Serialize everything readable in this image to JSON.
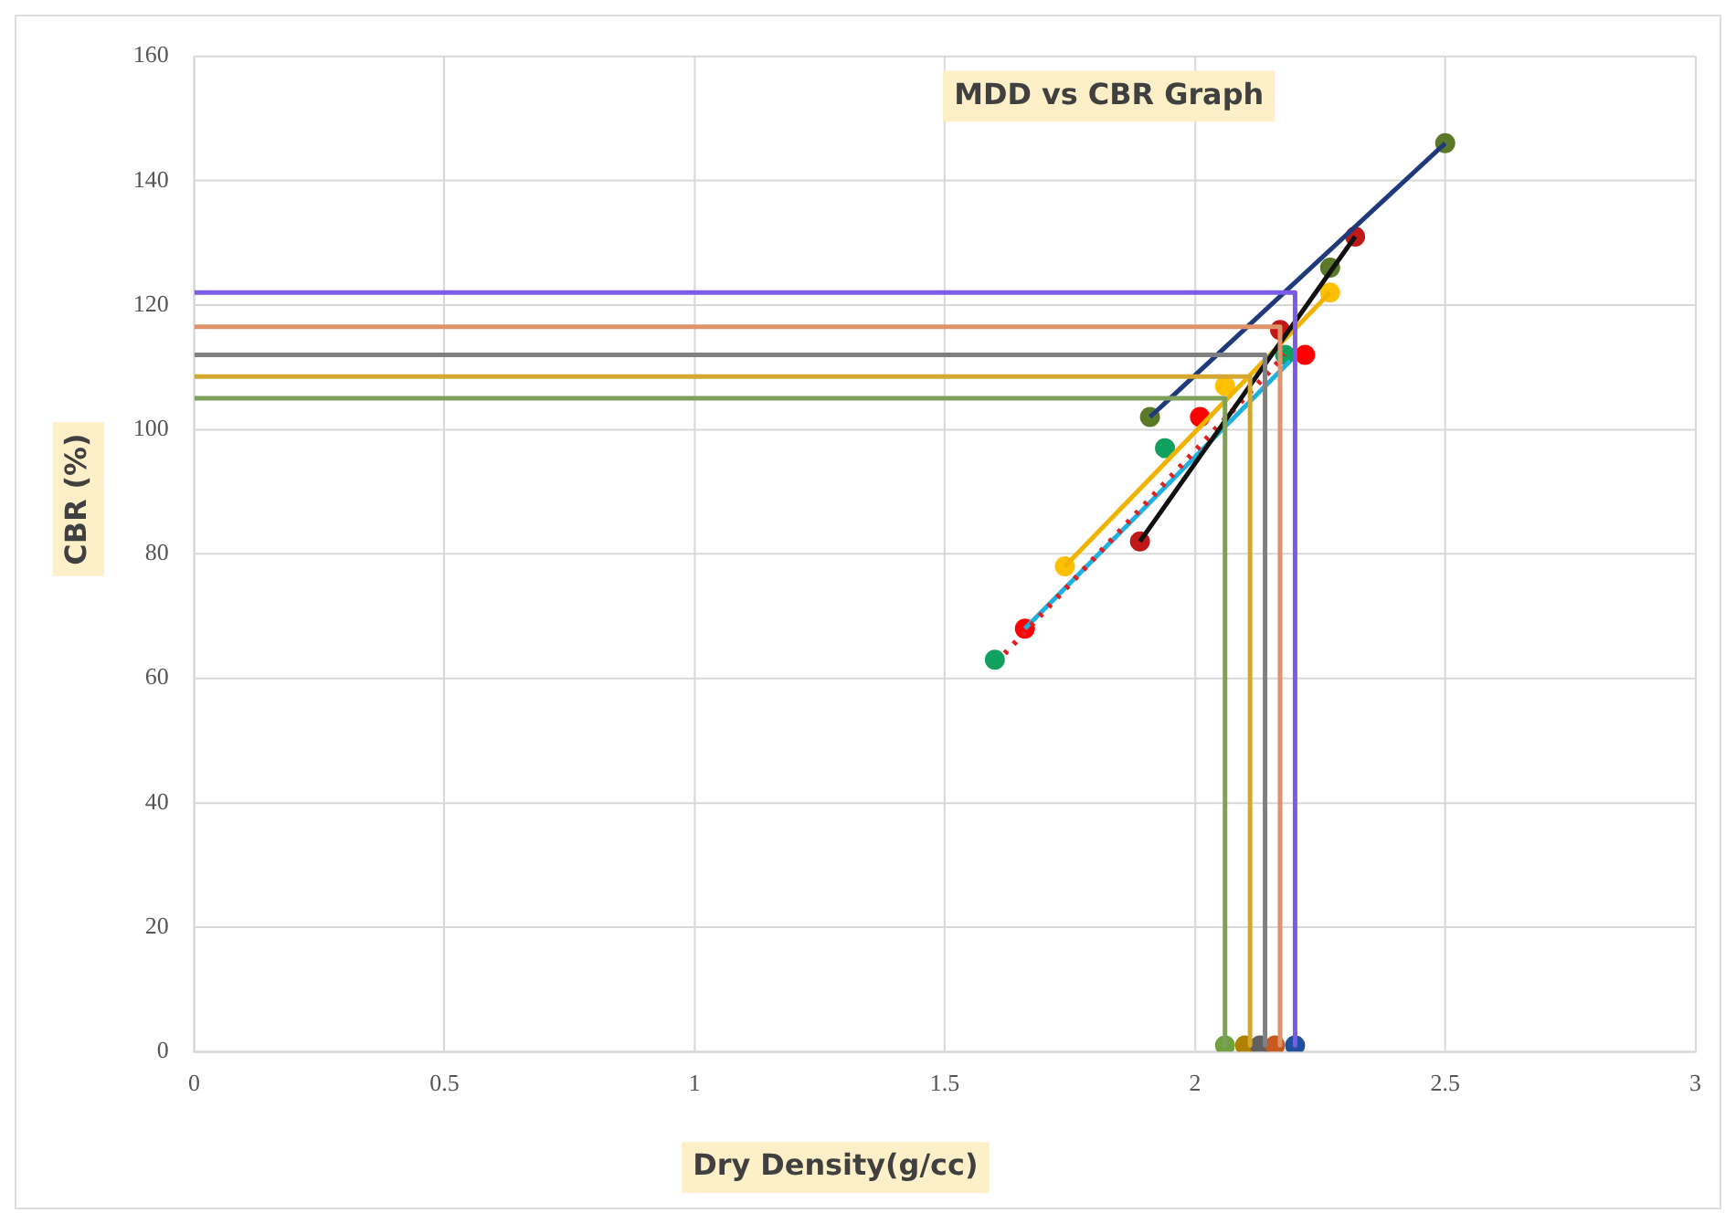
{
  "chart_data": {
    "type": "scatter",
    "title": "MDD vs CBR Graph",
    "xlabel": "Dry Density(g/cc)",
    "ylabel": "CBR (%)",
    "xlim": [
      0,
      3
    ],
    "ylim": [
      0,
      160
    ],
    "xticks": [
      0,
      0.5,
      1,
      1.5,
      2,
      2.5,
      3
    ],
    "yticks": [
      0,
      20,
      40,
      60,
      80,
      100,
      120,
      140,
      160
    ],
    "grid": true,
    "legend": false,
    "marker": "circle",
    "series": [
      {
        "type": "line",
        "color": "#7b5ce6",
        "x": [
          0,
          2.2,
          2.2
        ],
        "values": [
          122,
          122,
          1
        ],
        "marker": "none"
      },
      {
        "type": "line",
        "color": "#e0926a",
        "x": [
          0,
          2.17,
          2.17
        ],
        "values": [
          116.5,
          116.5,
          1
        ],
        "marker": "none"
      },
      {
        "type": "line",
        "color": "#808080",
        "x": [
          0,
          2.14,
          2.14
        ],
        "values": [
          112,
          112,
          1
        ],
        "marker": "none"
      },
      {
        "type": "line",
        "color": "#d4a830",
        "x": [
          0,
          2.11,
          2.11
        ],
        "values": [
          108.5,
          108.5,
          1
        ],
        "marker": "none"
      },
      {
        "type": "line",
        "color": "#7fa05a",
        "x": [
          0,
          2.06,
          2.06
        ],
        "values": [
          105,
          105,
          1
        ],
        "marker": "none"
      },
      {
        "type": "line",
        "color": "#1f3a7a",
        "x": [
          1.91,
          2.5
        ],
        "values": [
          102,
          146
        ],
        "marker": "none"
      },
      {
        "type": "line",
        "color": "#111111",
        "x": [
          1.89,
          2.32
        ],
        "values": [
          82,
          131
        ],
        "marker": "none"
      },
      {
        "type": "line",
        "color": "#f0b400",
        "x": [
          1.74,
          2.27
        ],
        "values": [
          78,
          122
        ],
        "marker": "none"
      },
      {
        "type": "line",
        "color": "#e02020",
        "x": [
          1.62,
          2.18
        ],
        "values": [
          64,
          112
        ],
        "marker": "none",
        "line_style": "dotted"
      },
      {
        "type": "line",
        "color": "#20b0e0",
        "x": [
          1.66,
          2.19
        ],
        "values": [
          68,
          111
        ],
        "marker": "none"
      },
      {
        "type": "scatter",
        "color": "#5a7a2a",
        "x": [
          1.91,
          2.27,
          2.5
        ],
        "values": [
          102,
          126,
          146
        ]
      },
      {
        "type": "scatter",
        "color": "#c01818",
        "x": [
          1.89,
          2.17,
          2.32
        ],
        "values": [
          82,
          116,
          131
        ]
      },
      {
        "type": "scatter",
        "color": "#ffc000",
        "x": [
          1.74,
          2.06,
          2.27
        ],
        "values": [
          78,
          107,
          122
        ]
      },
      {
        "type": "scatter",
        "color": "#10a060",
        "x": [
          1.6,
          1.94,
          2.18
        ],
        "values": [
          63,
          97,
          112
        ]
      },
      {
        "type": "scatter",
        "color": "#ff0000",
        "x": [
          1.66,
          2.01,
          2.22
        ],
        "values": [
          68,
          102,
          112
        ]
      },
      {
        "type": "scatter",
        "colors": [
          "#70a040",
          "#b08000",
          "#606060",
          "#c85a20",
          "#2050a0"
        ],
        "x": [
          2.06,
          2.1,
          2.13,
          2.16,
          2.2
        ],
        "values": [
          1,
          1,
          1,
          1,
          1
        ]
      }
    ]
  }
}
